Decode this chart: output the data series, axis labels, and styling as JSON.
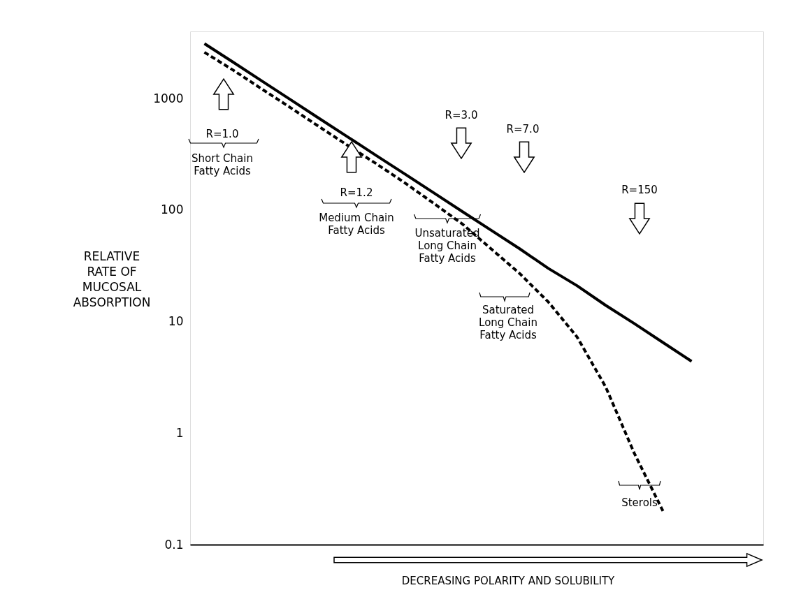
{
  "chart_data": {
    "type": "line",
    "xlabel": "DECREASING POLARITY AND SOLUBILITY",
    "ylabel": "RELATIVE\nRATE OF\nMUCOSAL\nABSORPTION",
    "categories": [
      null,
      null,
      null,
      null,
      null,
      null,
      null,
      null,
      null,
      null,
      null,
      null,
      null,
      null,
      null,
      null,
      null,
      null,
      null,
      null
    ],
    "series": [
      {
        "color": "#000000",
        "line_style": "solid",
        "values": [
          3110,
          2120,
          1440,
          980,
          665,
          453,
          308,
          210,
          143,
          97,
          66,
          45,
          30,
          21,
          14,
          9.6,
          6.5,
          4.4,
          null,
          null
        ]
      },
      {
        "color": "#000000",
        "line_style": "dashed",
        "values": [
          2600,
          1800,
          1220,
          830,
          560,
          380,
          260,
          175,
          115,
          75,
          45,
          27,
          15,
          7.3,
          2.6,
          0.66,
          0.2,
          null,
          null,
          null
        ]
      }
    ],
    "log": "y",
    "ylim": [
      0.1,
      4000
    ],
    "yticks": [
      0.1,
      1,
      10,
      100,
      1000
    ],
    "grid": false,
    "tick_labels": "y",
    "marker": "none",
    "annotations": [
      "R=1.0",
      "Short Chain\nFatty Acids",
      "R=1.2",
      "Medium Chain\nFatty Acids",
      "R=3.0",
      "R=7.0",
      "Unsaturated\nLong Chain\nFatty Acids",
      "Saturated\nLong Chain\nFatty Acids",
      "R=150",
      "Sterols"
    ]
  }
}
